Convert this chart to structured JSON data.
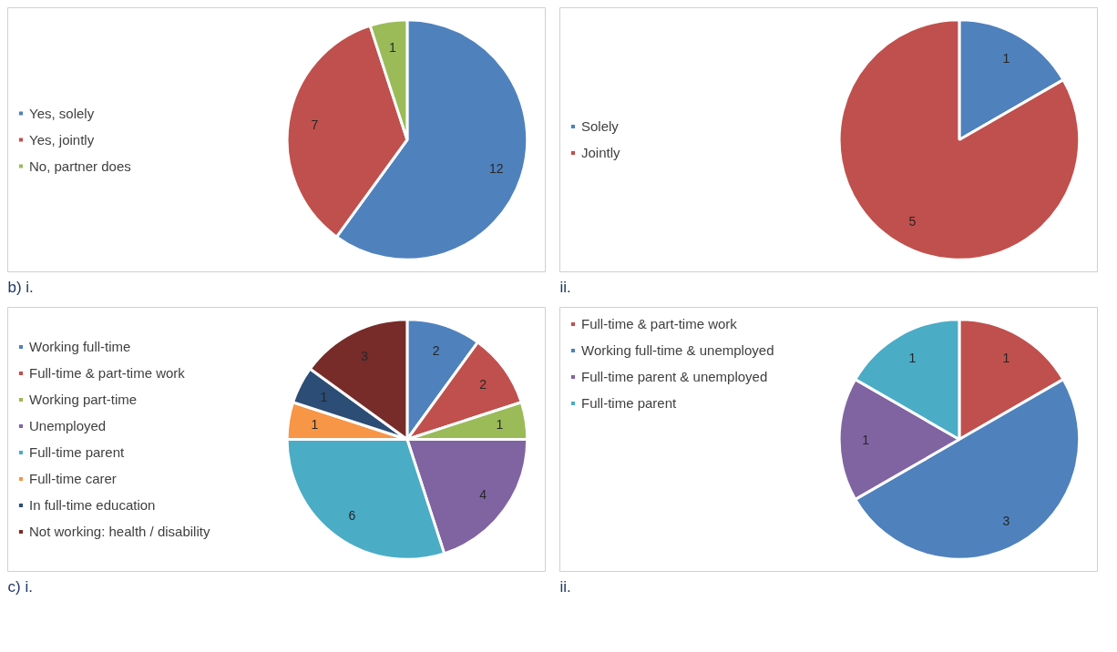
{
  "chart_data": [
    {
      "type": "pie",
      "annotations": [
        "b) i."
      ],
      "legend": "left",
      "data_labels": true,
      "categories": [
        "Yes, solely",
        "Yes, jointly",
        "No, partner does"
      ],
      "values": [
        12,
        7,
        1
      ],
      "colors": [
        "#4f81bd",
        "#c0504d",
        "#9bbb59"
      ]
    },
    {
      "type": "pie",
      "annotations": [
        "ii."
      ],
      "legend": "left",
      "data_labels": true,
      "categories": [
        "Solely",
        "Jointly"
      ],
      "values": [
        1,
        5
      ],
      "colors": [
        "#4f81bd",
        "#c0504d"
      ]
    },
    {
      "type": "pie",
      "annotations": [
        "c) i."
      ],
      "legend": "left",
      "data_labels": true,
      "categories": [
        "Working full-time",
        "Full-time & part-time work",
        "Working part-time",
        "Unemployed",
        "Full-time parent",
        "Full-time carer",
        "In full-time education",
        "Not working: health / disability"
      ],
      "values": [
        2,
        2,
        1,
        4,
        6,
        1,
        1,
        3
      ],
      "colors": [
        "#4f81bd",
        "#c0504d",
        "#9bbb59",
        "#8064a2",
        "#4bacc6",
        "#f79646",
        "#2c4d75",
        "#772c2a"
      ]
    },
    {
      "type": "pie",
      "annotations": [
        "ii."
      ],
      "legend": "top left",
      "data_labels": true,
      "categories": [
        "Full-time & part-time work",
        "Working full-time & unemployed",
        "Full-time parent & unemployed",
        "Full-time parent"
      ],
      "values": [
        1,
        3,
        1,
        1
      ],
      "colors": [
        "#c0504d",
        "#4f81bd",
        "#8064a2",
        "#4bacc6"
      ]
    }
  ]
}
